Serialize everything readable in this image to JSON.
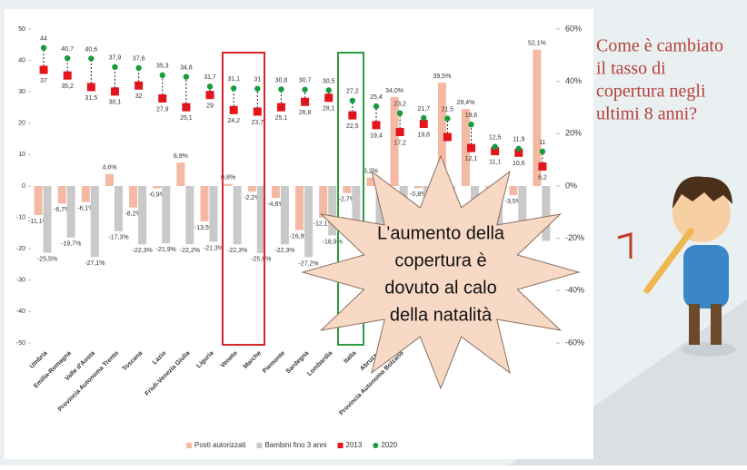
{
  "chart_data": {
    "type": "bar",
    "categories": [
      "Umbria",
      "Emilia-Romagna",
      "Valle d'Aosta",
      "Provincia Autonoma Trento",
      "Toscana",
      "Lazio",
      "Friuli-Venezia Giulia",
      "Liguria",
      "Veneto",
      "Marche",
      "Piemonte",
      "Sardegna",
      "Lombardia",
      "Italia",
      "Abruzzo",
      "Provincia Autonoma Bolzano",
      null,
      null,
      null,
      null,
      null,
      null
    ],
    "series": [
      {
        "name": "Posti autorizzati",
        "mark": "bar",
        "axis": "y2",
        "color": "#f4b9a2",
        "values": [
          -11.1,
          -6.7,
          -6.1,
          4.6,
          -8.2,
          -0.9,
          8.9,
          -13.5,
          0.8,
          -2.2,
          -4.6,
          -16.9,
          -12.1,
          -2.7,
          3.2,
          34.0,
          -0.8,
          39.5,
          29.4,
          -5,
          -3.5,
          52.1
        ],
        "value_labels": [
          "-11,1%",
          "-6,7%",
          "-6,1%",
          "4,6%",
          "-8,2%",
          "-0,9%",
          "8,9%",
          "-13,5%",
          "0,8%",
          "-2,2%",
          "-4,6%",
          "-16,9%",
          "-12,1%",
          "-2,7%",
          "3,2%",
          "34,0%",
          "-0,8%",
          "39,5%",
          "29,4%",
          null,
          "-3,5%",
          "52,1%"
        ]
      },
      {
        "name": "Bambini fino 3 anni",
        "mark": "bar",
        "axis": "y2",
        "color": "#c9c9c9",
        "values": [
          -25.5,
          -19.7,
          -27.1,
          -17.3,
          -22.3,
          -21.9,
          -22.2,
          -21.3,
          -22.3,
          -25.6,
          -22.3,
          -27.2,
          -18.9,
          -20,
          -22,
          -18,
          -20,
          -22,
          -21,
          -25,
          -24,
          -21
        ],
        "value_labels": [
          "-25,5%",
          "-19,7%",
          "-27,1%",
          "-17,3%",
          "-22,3%",
          "-21,9%",
          "-22,2%",
          "-21,3%",
          "-22,3%",
          "-25,6%",
          "-22,3%",
          "-27,2%",
          "-18,9%",
          null,
          null,
          null,
          null,
          null,
          null,
          null,
          null,
          null
        ]
      },
      {
        "name": "2013",
        "mark": "square",
        "color": "#e3141c",
        "values": [
          37,
          35.2,
          31.5,
          30.1,
          32,
          27.9,
          25.1,
          29,
          24.2,
          23.7,
          25.1,
          26.8,
          28.1,
          22.5,
          19.4,
          17.2,
          19.8,
          15.6,
          12.1,
          11.1,
          10.6,
          6.2
        ],
        "value_labels": [
          "37",
          "35,2",
          "31,5",
          "30,1",
          "32",
          "27,9",
          "25,1",
          "29",
          "24,2",
          "23,7",
          "25,1",
          "26,8",
          "28,1",
          "22,5",
          "19,4",
          "17,2",
          "19,8",
          null,
          "12,1",
          "11,1",
          "10,6",
          "6,2"
        ]
      },
      {
        "name": "2020",
        "mark": "dot",
        "color": "#179c3d",
        "values": [
          44,
          40.7,
          40.6,
          37.9,
          37.6,
          35.3,
          34.8,
          31.7,
          31.1,
          31,
          30.8,
          30.7,
          30.5,
          27.2,
          25.4,
          23.2,
          21.7,
          21.5,
          19.6,
          12.5,
          11.9,
          11
        ],
        "value_labels": [
          "44",
          "40,7",
          "40,6",
          "37,9",
          "37,6",
          "35,3",
          "34,8",
          "31,7",
          "31,1",
          "31",
          "30,8",
          "30,7",
          "30,5",
          "27,2",
          "25,4",
          "23,2",
          "21,7",
          "21,5",
          "19,6",
          "12,5",
          "11,9",
          "11"
        ]
      }
    ],
    "ylim": [
      -50,
      50
    ],
    "yticks": [
      -50,
      -40,
      -30,
      -20,
      -10,
      0,
      10,
      20,
      30,
      40,
      50
    ],
    "y2lim": [
      -60,
      60
    ],
    "y2ticks": [
      {
        "value": -60,
        "label": "-60%"
      },
      {
        "value": -40,
        "label": "-40%"
      },
      {
        "value": -20,
        "label": "-20%"
      },
      {
        "value": 0,
        "label": "0%"
      },
      {
        "value": 20,
        "label": "20%"
      },
      {
        "value": 40,
        "label": "40%"
      },
      {
        "value": 60,
        "label": "60%"
      }
    ],
    "grid": false
  },
  "slide": {
    "question": [
      "Come è cambiato",
      "il tasso di",
      "copertura negli",
      "ultimi 8 anni?"
    ],
    "callout": [
      "L’aumento della",
      "copertura è",
      "dovuto al calo",
      "della natalità"
    ]
  }
}
